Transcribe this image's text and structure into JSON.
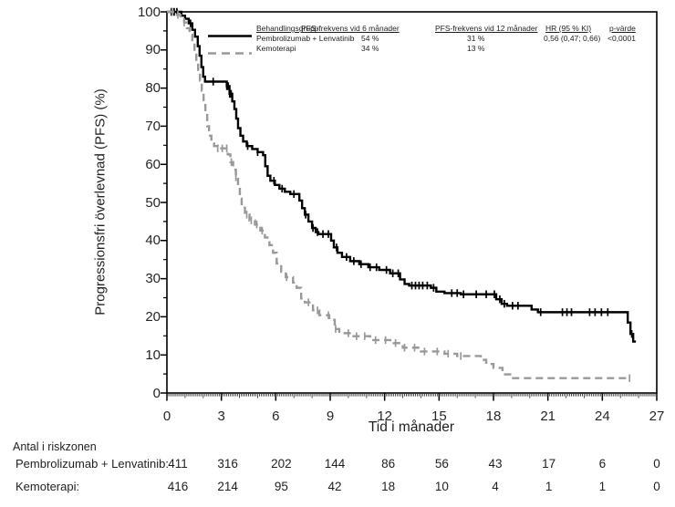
{
  "figure_type": "Kaplan-Meier progression-free survival plot",
  "colors": {
    "series1": "#000000",
    "series2": "#999999",
    "axis": "#000000",
    "text": "#1f1f1f"
  },
  "legend": {
    "headers": {
      "group": "Behandlingsgrupp",
      "pfs6": "PFS-frekvens vid 6 månader",
      "pfs12": "PFS-frekvens vid 12 månader",
      "hr": "HR (95 % KI)",
      "p": "p-värde"
    },
    "rows": [
      {
        "group": "Pembrolizumab + Lenvatinib",
        "pfs6": "54 %",
        "pfs12": "31 %",
        "hr": "0,56 (0,47; 0,66)",
        "p": "<0,0001"
      },
      {
        "group": "Kemoterapi",
        "pfs6": "34 %",
        "pfs12": "13 %",
        "hr": "",
        "p": ""
      }
    ]
  },
  "risk_table": {
    "title": "Antal i riskzonen",
    "time_points": [
      0,
      3,
      6,
      9,
      12,
      15,
      18,
      21,
      24,
      27
    ],
    "rows": [
      {
        "label": "Pembrolizumab + Lenvatinib:",
        "counts": [
          411,
          316,
          202,
          144,
          86,
          56,
          43,
          17,
          6,
          0
        ]
      },
      {
        "label": "Kemoterapi:",
        "counts": [
          416,
          214,
          95,
          42,
          18,
          10,
          4,
          1,
          1,
          0
        ]
      }
    ]
  },
  "chart_data": {
    "type": "line",
    "subtype": "kaplan-meier step curves with censor tick marks",
    "title": "",
    "xlabel": "Tid i månader",
    "ylabel": "Progressionsfri överlevnad (PFS) (%)",
    "xlim": [
      0,
      27
    ],
    "ylim": [
      0,
      100
    ],
    "x_major_ticks": [
      0,
      3,
      6,
      9,
      12,
      15,
      18,
      21,
      24,
      27
    ],
    "y_major_ticks": [
      0,
      10,
      20,
      30,
      40,
      50,
      60,
      70,
      80,
      90,
      100
    ],
    "y_minor_step": 5,
    "x_minor_step": 0.1,
    "grid": false,
    "legend_position": "top-inside-table",
    "series": [
      {
        "name": "Pembrolizumab + Lenvatinib",
        "color": "#000000",
        "style": "solid",
        "pfs_rate_6mo": "54 %",
        "pfs_rate_12mo": "31 %",
        "hr_95ci": "0,56 (0,47; 0,66)",
        "p_value": "<0,0001",
        "steps": [
          [
            0,
            100
          ],
          [
            0.8,
            99
          ],
          [
            1.0,
            98.2
          ],
          [
            1.2,
            97
          ],
          [
            1.4,
            95.3
          ],
          [
            1.55,
            93.5
          ],
          [
            1.7,
            91
          ],
          [
            1.8,
            88.5
          ],
          [
            1.9,
            85.5
          ],
          [
            2.0,
            83
          ],
          [
            2.1,
            81.7
          ],
          [
            3.3,
            80.5
          ],
          [
            3.45,
            78.5
          ],
          [
            3.6,
            76.5
          ],
          [
            3.72,
            74.5
          ],
          [
            3.82,
            72
          ],
          [
            3.92,
            69.5
          ],
          [
            4.05,
            67.5
          ],
          [
            4.2,
            66
          ],
          [
            4.4,
            64.8
          ],
          [
            4.7,
            64
          ],
          [
            5.0,
            63.2
          ],
          [
            5.3,
            62.4
          ],
          [
            5.42,
            59.5
          ],
          [
            5.55,
            57
          ],
          [
            5.7,
            55.7
          ],
          [
            5.95,
            54.6
          ],
          [
            6.2,
            53.6
          ],
          [
            6.5,
            52.8
          ],
          [
            6.8,
            52.2
          ],
          [
            7.3,
            50.5
          ],
          [
            7.45,
            48.5
          ],
          [
            7.6,
            46.8
          ],
          [
            7.8,
            45
          ],
          [
            8.0,
            43.3
          ],
          [
            8.2,
            42.2
          ],
          [
            8.35,
            41.7
          ],
          [
            9.05,
            40
          ],
          [
            9.2,
            38.2
          ],
          [
            9.4,
            36.8
          ],
          [
            9.65,
            35.7
          ],
          [
            10.1,
            34.6
          ],
          [
            10.6,
            33.8
          ],
          [
            11.1,
            33
          ],
          [
            11.7,
            32.3
          ],
          [
            12.3,
            31.4
          ],
          [
            12.85,
            29.8
          ],
          [
            13.1,
            28.6
          ],
          [
            13.35,
            28.2
          ],
          [
            14.55,
            27.6
          ],
          [
            14.85,
            26.6
          ],
          [
            15.3,
            26.2
          ],
          [
            16.2,
            25.9
          ],
          [
            18.15,
            24.6
          ],
          [
            18.45,
            23.4
          ],
          [
            18.75,
            22.9
          ],
          [
            20.1,
            21.9
          ],
          [
            20.45,
            21.2
          ],
          [
            25.4,
            18.5
          ],
          [
            25.55,
            15.5
          ],
          [
            25.7,
            13.5
          ]
        ],
        "tail_end": 25.85,
        "censor_months": [
          0.25,
          0.4,
          0.55,
          1.3,
          2.55,
          3.3,
          3.38,
          3.46,
          3.54,
          4.45,
          5.0,
          5.9,
          6.35,
          7.0,
          7.65,
          8.05,
          8.3,
          8.6,
          8.9,
          9.35,
          9.9,
          10.3,
          10.7,
          11.2,
          11.55,
          12.1,
          12.45,
          12.75,
          13.5,
          13.7,
          13.9,
          14.1,
          14.35,
          14.7,
          15.7,
          16.0,
          16.35,
          17.05,
          17.6,
          18.05,
          18.35,
          18.6,
          19.05,
          19.35,
          20.6,
          21.8,
          22.05,
          22.3,
          23.3,
          23.6,
          23.95,
          24.3,
          25.62
        ]
      },
      {
        "name": "Kemoterapi",
        "color": "#999999",
        "style": "dashed",
        "pfs_rate_6mo": "34 %",
        "pfs_rate_12mo": "13 %",
        "hr_95ci": "",
        "p_value": "",
        "steps": [
          [
            0,
            100
          ],
          [
            0.55,
            99.2
          ],
          [
            0.75,
            98.3
          ],
          [
            0.95,
            97.2
          ],
          [
            1.1,
            95.7
          ],
          [
            1.25,
            94
          ],
          [
            1.4,
            91.8
          ],
          [
            1.52,
            89.5
          ],
          [
            1.62,
            87
          ],
          [
            1.72,
            84.5
          ],
          [
            1.82,
            82
          ],
          [
            1.92,
            79.3
          ],
          [
            2.02,
            76.3
          ],
          [
            2.12,
            73.3
          ],
          [
            2.22,
            70
          ],
          [
            2.32,
            67.5
          ],
          [
            2.45,
            65.8
          ],
          [
            2.6,
            64.8
          ],
          [
            2.8,
            64.2
          ],
          [
            3.35,
            62.6
          ],
          [
            3.5,
            60.6
          ],
          [
            3.65,
            58.6
          ],
          [
            3.8,
            56.6
          ],
          [
            3.92,
            54.2
          ],
          [
            4.02,
            51
          ],
          [
            4.12,
            48.6
          ],
          [
            4.3,
            46.8
          ],
          [
            4.55,
            45.3
          ],
          [
            4.85,
            44.2
          ],
          [
            5.15,
            42.6
          ],
          [
            5.4,
            40.8
          ],
          [
            5.65,
            38.8
          ],
          [
            5.85,
            36.8
          ],
          [
            6.05,
            34
          ],
          [
            6.3,
            31.8
          ],
          [
            6.55,
            30.4
          ],
          [
            6.95,
            29
          ],
          [
            7.15,
            27.6
          ],
          [
            7.4,
            24.8
          ],
          [
            7.6,
            23.8
          ],
          [
            8.05,
            21.7
          ],
          [
            8.4,
            20.4
          ],
          [
            8.95,
            19.2
          ],
          [
            9.25,
            16.8
          ],
          [
            9.5,
            15.7
          ],
          [
            10.2,
            14.9
          ],
          [
            11.2,
            13.9
          ],
          [
            12.5,
            13.1
          ],
          [
            13.0,
            11.9
          ],
          [
            14.0,
            10.9
          ],
          [
            15.3,
            10.3
          ],
          [
            16.0,
            9.7
          ],
          [
            17.3,
            8.7
          ],
          [
            17.6,
            7.6
          ],
          [
            18.0,
            6.6
          ],
          [
            18.5,
            4.9
          ],
          [
            19.0,
            3.9
          ]
        ],
        "tail_end": 25.5,
        "censor_months": [
          0.3,
          0.6,
          0.95,
          2.8,
          3.05,
          3.3,
          3.55,
          3.8,
          4.4,
          4.65,
          4.95,
          5.25,
          6.6,
          7.8,
          8.3,
          8.9,
          9.3,
          10.0,
          10.45,
          10.9,
          11.5,
          12.05,
          12.6,
          13.1,
          13.65,
          14.2,
          14.9,
          15.5,
          16.2,
          25.5
        ]
      }
    ]
  }
}
